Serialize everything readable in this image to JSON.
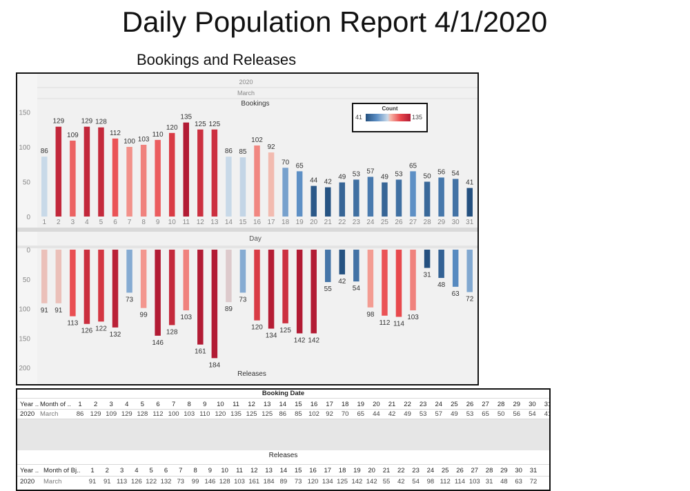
{
  "report_title": "Daily Population Report 4/1/2020",
  "section_title": "Bookings and Releases",
  "chart_data": {
    "type": "bar",
    "year_header": "2020",
    "month_header": "March",
    "categories": [
      "1",
      "2",
      "3",
      "4",
      "5",
      "6",
      "7",
      "8",
      "9",
      "10",
      "11",
      "12",
      "13",
      "14",
      "15",
      "16",
      "17",
      "18",
      "19",
      "20",
      "21",
      "22",
      "23",
      "24",
      "25",
      "26",
      "27",
      "28",
      "29",
      "30",
      "31"
    ],
    "xlabel": "Day",
    "series": [
      {
        "name": "Bookings",
        "values": [
          86,
          129,
          109,
          129,
          128,
          112,
          100,
          103,
          110,
          120,
          135,
          125,
          125,
          86,
          85,
          102,
          92,
          70,
          65,
          44,
          42,
          49,
          53,
          57,
          49,
          53,
          65,
          50,
          56,
          54,
          41
        ],
        "yticks": [
          0,
          50,
          100,
          150
        ],
        "ylim": [
          0,
          155
        ]
      },
      {
        "name": "Releases",
        "values": [
          91,
          91,
          113,
          126,
          122,
          132,
          73,
          99,
          146,
          128,
          103,
          161,
          184,
          89,
          73,
          120,
          134,
          125,
          142,
          142,
          55,
          42,
          54,
          98,
          112,
          114,
          103,
          31,
          48,
          63,
          72
        ],
        "yticks": [
          0,
          50,
          100,
          150,
          200
        ],
        "ylim": [
          0,
          205
        ],
        "reversed": true
      }
    ],
    "color_legend": {
      "title": "Count",
      "min": 41,
      "max": 135,
      "min_label": "41",
      "max_label": "135",
      "colors": [
        "#24507f",
        "#5b8ec4",
        "#c9d9e8",
        "#f7b7a9",
        "#e8474c",
        "#b21b34"
      ]
    },
    "grid": false
  },
  "table": {
    "bookings_caption": "Booking Date",
    "releases_caption": "Releases",
    "bookings_col_year": "Year ..",
    "bookings_col_month": "Month of ..",
    "releases_col_year": "Year ..",
    "releases_col_month": "Month of Bj..",
    "row_year": "2020",
    "row_month": "March",
    "days": [
      "1",
      "2",
      "3",
      "4",
      "5",
      "6",
      "7",
      "8",
      "9",
      "10",
      "11",
      "12",
      "13",
      "14",
      "15",
      "16",
      "17",
      "18",
      "19",
      "20",
      "21",
      "22",
      "23",
      "24",
      "25",
      "26",
      "27",
      "28",
      "29",
      "30",
      "31"
    ]
  }
}
